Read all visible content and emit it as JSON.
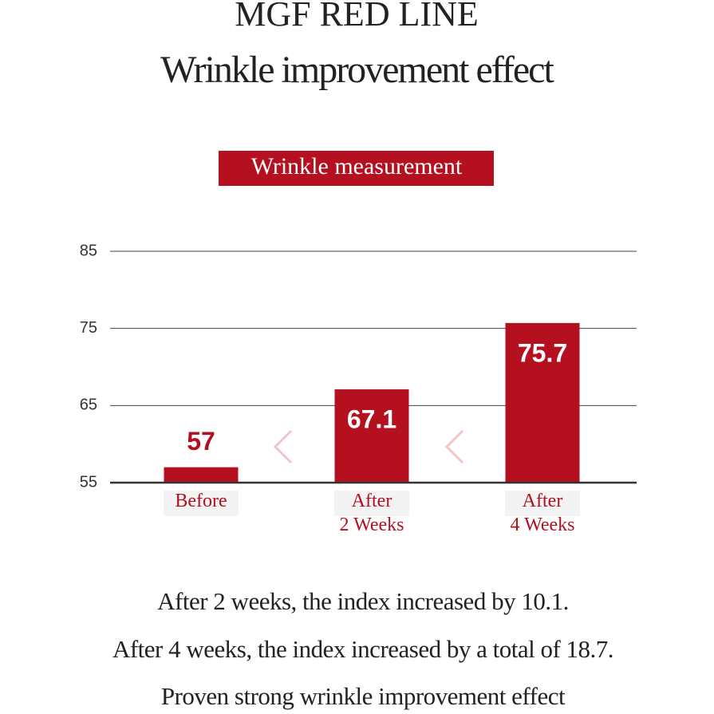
{
  "chart_data": {
    "type": "bar",
    "title": "MGF RED LINE",
    "subtitle": "Wrinkle improvement effect",
    "badge": "Wrinkle measurement",
    "categories": [
      "Before",
      "After 2 Weeks",
      "After 4 Weeks"
    ],
    "values": [
      57,
      67.1,
      75.7
    ],
    "color": "#b5101f",
    "ylim": [
      55,
      85
    ],
    "yticks": [
      55,
      65,
      75,
      85
    ],
    "grid": true,
    "notes": [
      "After 2 weeks, the index increased by 10.1.",
      "After 4 weeks, the index increased by a total of 18.7.",
      "Proven strong wrinkle improvement effect"
    ]
  }
}
